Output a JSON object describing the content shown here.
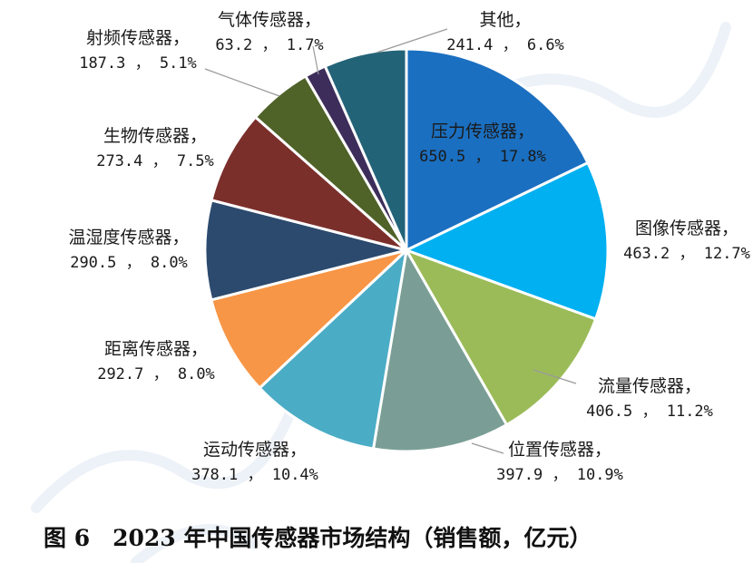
{
  "chart_data": {
    "type": "pie",
    "title": "图 6　2023 年中国传感器市场结构（销售额，亿元）",
    "unit": "亿元",
    "slices": [
      {
        "label": "压力传感器",
        "value": 650.5,
        "percent": "17.8%",
        "color": "#1b6fc0"
      },
      {
        "label": "图像传感器",
        "value": 463.2,
        "percent": "12.7%",
        "color": "#00b0f0"
      },
      {
        "label": "流量传感器",
        "value": 406.5,
        "percent": "11.2%",
        "color": "#9bbb59"
      },
      {
        "label": "位置传感器",
        "value": 397.9,
        "percent": "10.9%",
        "color": "#7a9e95"
      },
      {
        "label": "运动传感器",
        "value": 378.1,
        "percent": "10.4%",
        "color": "#4bacc6"
      },
      {
        "label": "距离传感器",
        "value": 292.7,
        "percent": "8.0%",
        "color": "#f79646"
      },
      {
        "label": "温湿度传感器",
        "value": 290.5,
        "percent": "8.0%",
        "color": "#2c4a6e"
      },
      {
        "label": "生物传感器",
        "value": 273.4,
        "percent": "7.5%",
        "color": "#7b2f2b"
      },
      {
        "label": "射频传感器",
        "value": 187.3,
        "percent": "5.1%",
        "color": "#4f6228"
      },
      {
        "label": "气体传感器",
        "value": 63.2,
        "percent": "1.7%",
        "color": "#3d2d5a"
      },
      {
        "label": "其他",
        "value": 241.4,
        "percent": "6.6%",
        "color": "#236378"
      }
    ]
  }
}
